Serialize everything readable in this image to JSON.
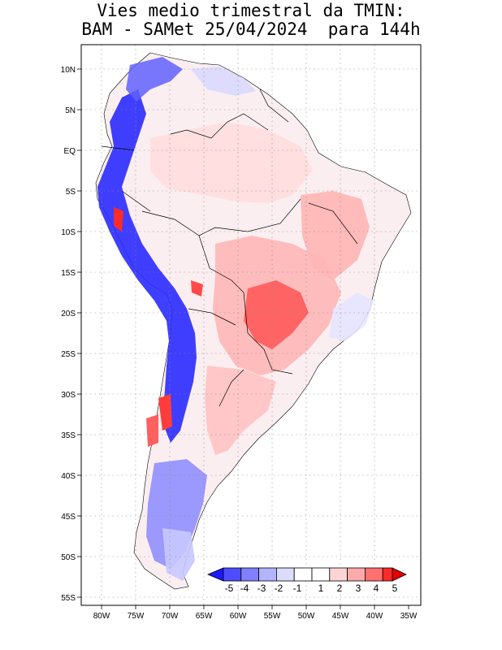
{
  "title": {
    "line1": "Vies medio trimestral da TMIN:",
    "line2": "BAM - SAMet 25/04/2024  para 144h"
  },
  "map": {
    "region": "South America",
    "lat_labels": [
      "10N",
      "5N",
      "EQ",
      "5S",
      "10S",
      "15S",
      "20S",
      "25S",
      "30S",
      "35S",
      "40S",
      "45S",
      "50S",
      "55S"
    ],
    "lon_labels": [
      "80W",
      "75W",
      "70W",
      "65W",
      "60W",
      "55W",
      "50W",
      "45W",
      "40W",
      "35W"
    ],
    "gridlines": "dotted"
  },
  "colorbar": {
    "labels": [
      "-5",
      "-4",
      "-3",
      "-2",
      "-1",
      "1",
      "2",
      "3",
      "4",
      "5"
    ],
    "colors": [
      "#1a1aff",
      "#4d4dff",
      "#8080ff",
      "#b3b3ff",
      "#dcdcff",
      "#ffffff",
      "#ffd4d4",
      "#ffaaaa",
      "#ff7070",
      "#ff2a2a",
      "#e60000"
    ],
    "extends": "both"
  },
  "colors": {
    "cold_strong": "#1010ff",
    "cold_weak": "#c8c8ff",
    "warm_weak": "#ffd0d0",
    "warm_strong": "#ff3030",
    "frame": "#000000"
  }
}
